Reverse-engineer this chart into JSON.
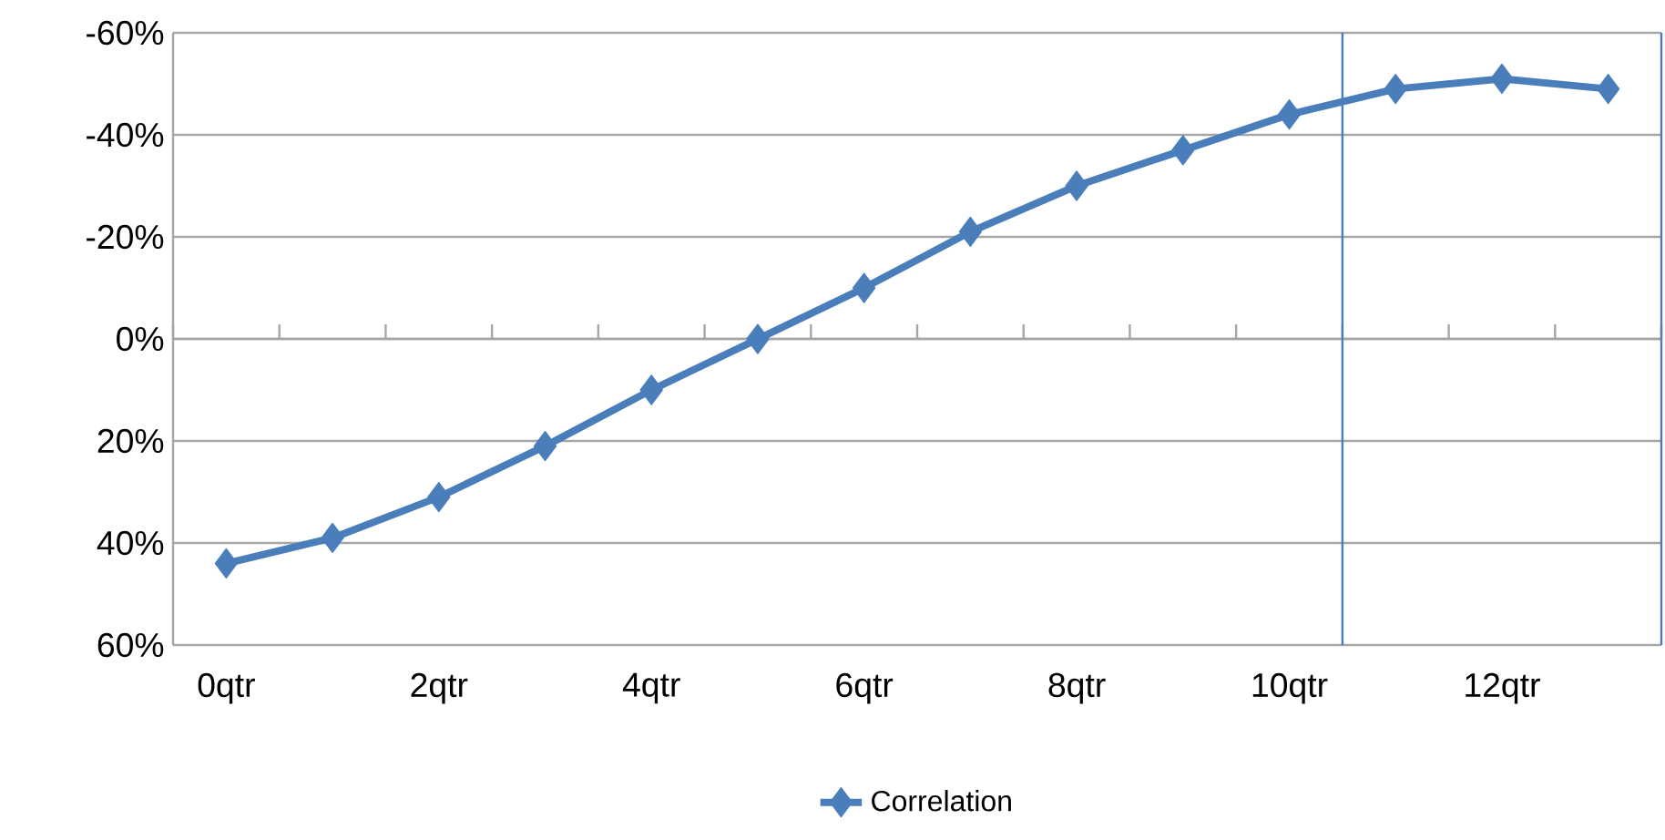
{
  "chart_data": {
    "type": "line",
    "categories": [
      "0qtr",
      null,
      "2qtr",
      null,
      "4qtr",
      null,
      "6qtr",
      null,
      "8qtr",
      null,
      "10qtr",
      null,
      "12qtr",
      null
    ],
    "series": [
      {
        "name": "Correlation",
        "color": "#4a7ebb",
        "values": [
          44,
          39,
          31,
          21,
          10,
          0,
          -10,
          -21,
          -30,
          -37,
          -44,
          -49,
          -51,
          -49
        ]
      }
    ],
    "ylim": [
      60,
      -60
    ],
    "yticks": [
      {
        "value": -60,
        "label": "-60%"
      },
      {
        "value": -40,
        "label": "-40%"
      },
      {
        "value": -20,
        "label": "-20%"
      },
      {
        "value": 0,
        "label": "0%"
      },
      {
        "value": 20,
        "label": "20%"
      },
      {
        "value": 40,
        "label": "40%"
      },
      {
        "value": 60,
        "label": "60%"
      }
    ],
    "grid": "y",
    "legend": "bottom",
    "marker": "diamond",
    "line_style": "solid"
  }
}
